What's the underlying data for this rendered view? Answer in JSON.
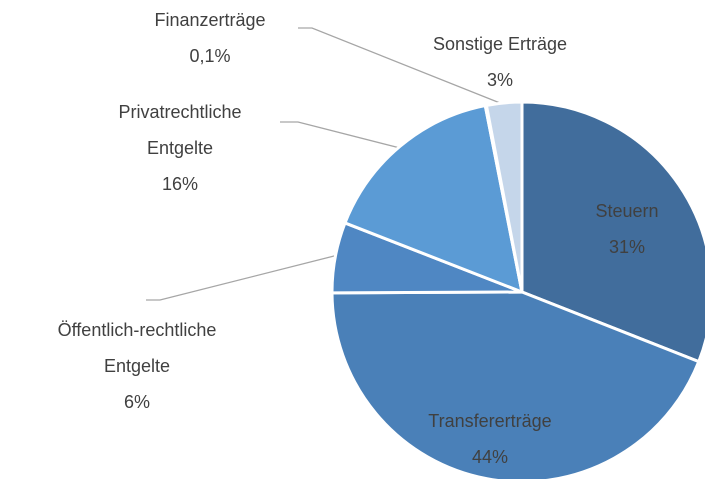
{
  "chart_data": {
    "type": "pie",
    "categories": [
      "Steuern",
      "Transfererträge",
      "Öffentlich-rechtliche Entgelte",
      "Privatrechtliche Entgelte",
      "Finanzerträge",
      "Sonstige Erträge"
    ],
    "values": [
      31,
      44,
      6,
      16,
      0.1,
      3
    ],
    "value_labels": [
      "31%",
      "44%",
      "6%",
      "16%",
      "0,1%",
      "3%"
    ],
    "colors": [
      "#416d9c",
      "#4a80b8",
      "#4f87c3",
      "#5b9bd5",
      "#7fb0de",
      "#c5d6ea"
    ]
  }
}
